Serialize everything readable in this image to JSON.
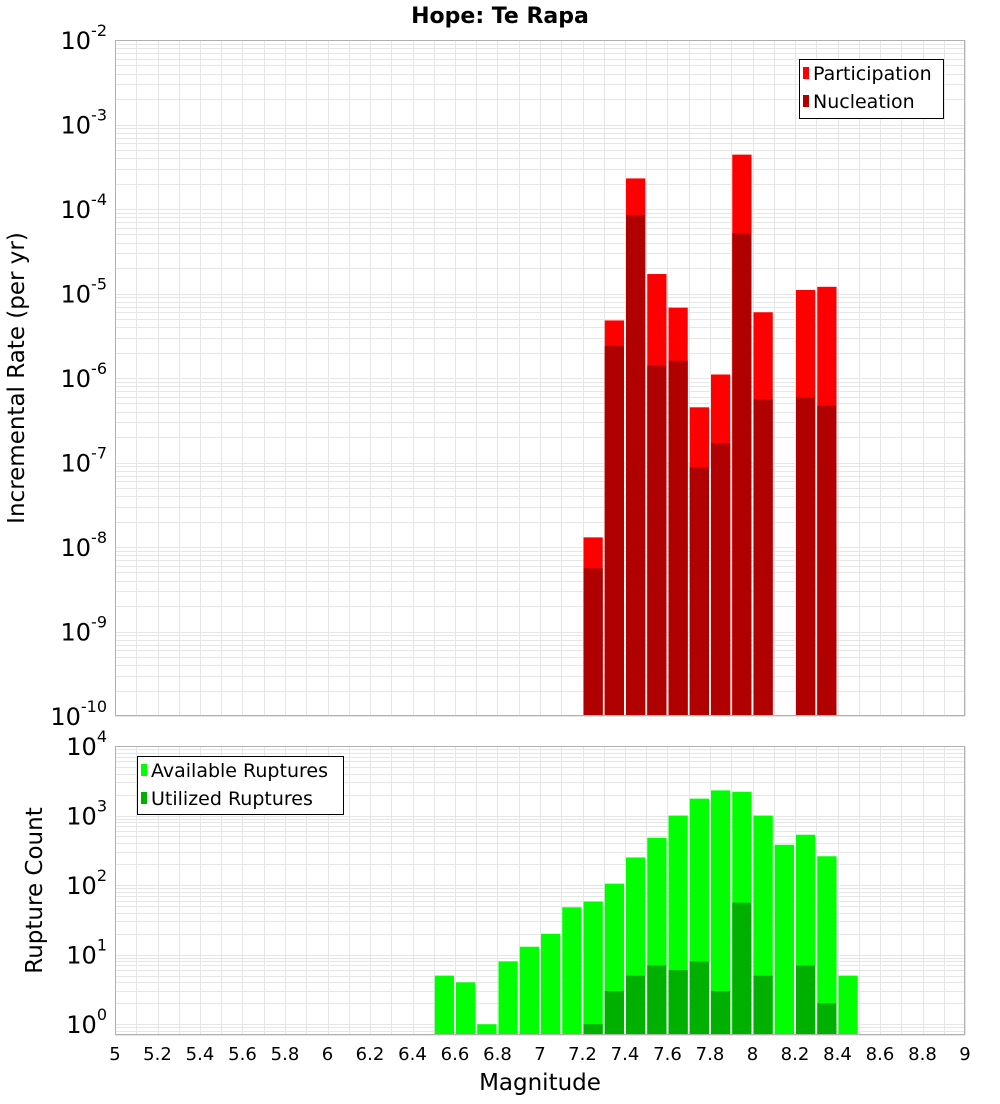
{
  "title": "Hope: Te Rapa",
  "colors": {
    "participation": "#ff0000",
    "nucleation": "#b00000",
    "available": "#00ff00",
    "utilized": "#00b000",
    "grid": "#e6e6e6",
    "frame": "#b0b0b0"
  },
  "chart_data": [
    {
      "type": "bar",
      "title": "Hope: Te Rapa",
      "xlabel": "",
      "ylabel": "Incremental Rate (per yr)",
      "yscale": "log",
      "xlim": [
        5,
        9
      ],
      "ylim": [
        1e-10,
        0.01
      ],
      "ytick_exponents": [
        "-2",
        "-3",
        "-4",
        "-5",
        "-6",
        "-7",
        "-8",
        "-9",
        "-10"
      ],
      "legend_position": "top-right",
      "x": [
        7.25,
        7.35,
        7.45,
        7.55,
        7.65,
        7.75,
        7.85,
        7.95,
        8.05,
        8.25,
        8.35
      ],
      "series": [
        {
          "name": "Participation",
          "values": [
            1.3e-08,
            4.8e-06,
            0.00023,
            1.7e-05,
            6.8e-06,
            4.5e-07,
            1.1e-06,
            0.00044,
            6e-06,
            1.1e-05,
            1.2e-05
          ]
        },
        {
          "name": "Nucleation",
          "values": [
            5.6e-09,
            2.4e-06,
            8.5e-05,
            1.4e-06,
            1.6e-06,
            8.8e-08,
            1.7e-07,
            5.2e-05,
            5.6e-07,
            5.9e-07,
            4.7e-07
          ]
        }
      ]
    },
    {
      "type": "bar",
      "title": "",
      "xlabel": "Magnitude",
      "ylabel": "Rupture Count",
      "yscale": "log",
      "xlim": [
        5,
        9
      ],
      "ylim": [
        0.7,
        10000
      ],
      "xticks": [
        "5",
        "5.2",
        "5.4",
        "5.6",
        "5.8",
        "6",
        "6.2",
        "6.4",
        "6.6",
        "6.8",
        "7",
        "7.2",
        "7.4",
        "7.6",
        "7.8",
        "8",
        "8.2",
        "8.4",
        "8.6",
        "8.8",
        "9"
      ],
      "ytick_exponents": [
        "4",
        "3",
        "2",
        "1",
        "0"
      ],
      "legend_position": "top-left",
      "x": [
        6.55,
        6.65,
        6.75,
        6.85,
        6.95,
        7.05,
        7.15,
        7.25,
        7.35,
        7.45,
        7.55,
        7.65,
        7.75,
        7.85,
        7.95,
        8.05,
        8.15,
        8.25,
        8.35,
        8.45
      ],
      "series": [
        {
          "name": "Available Ruptures",
          "values": [
            5,
            4,
            1,
            8,
            13,
            20,
            48,
            58,
            105,
            250,
            480,
            1000,
            1750,
            2300,
            2200,
            1000,
            380,
            530,
            260,
            5
          ]
        },
        {
          "name": "Utilized Ruptures",
          "values": [
            0,
            0,
            0,
            0,
            0,
            0,
            0,
            1,
            3,
            5,
            7,
            6,
            8,
            3,
            56,
            5,
            0,
            7,
            2,
            0
          ]
        }
      ]
    }
  ]
}
